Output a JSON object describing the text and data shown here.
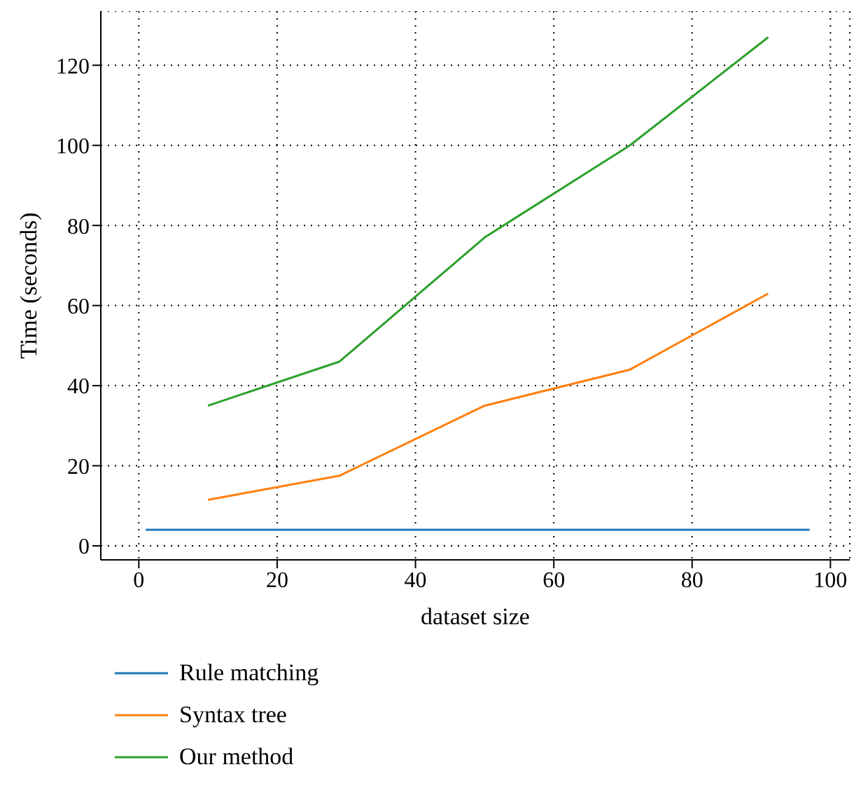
{
  "chart_data": {
    "type": "line",
    "xlabel": "dataset size",
    "ylabel": "Time (seconds)",
    "xlim": [
      -5.5,
      102.8
    ],
    "xticks": [
      0,
      20,
      40,
      60,
      80,
      100
    ],
    "ylim": [
      -3.5,
      133.5
    ],
    "yticks": [
      0,
      20,
      40,
      60,
      80,
      100,
      120
    ],
    "grid": true,
    "legend": "bottom",
    "marker": "none",
    "line_style": "solid",
    "series": [
      {
        "name": "Rule matching",
        "color": "#1f77b4",
        "x": [
          1,
          97
        ],
        "values": [
          4,
          4
        ]
      },
      {
        "name": "Syntax tree",
        "color": "#ff7f0e",
        "x": [
          10,
          29,
          50,
          71,
          91
        ],
        "values": [
          11.5,
          17.5,
          35,
          44,
          63
        ]
      },
      {
        "name": "Our method",
        "color": "#2ca02c",
        "x": [
          10,
          29,
          50,
          71,
          91
        ],
        "values": [
          35,
          46,
          77,
          100,
          127
        ]
      }
    ]
  }
}
